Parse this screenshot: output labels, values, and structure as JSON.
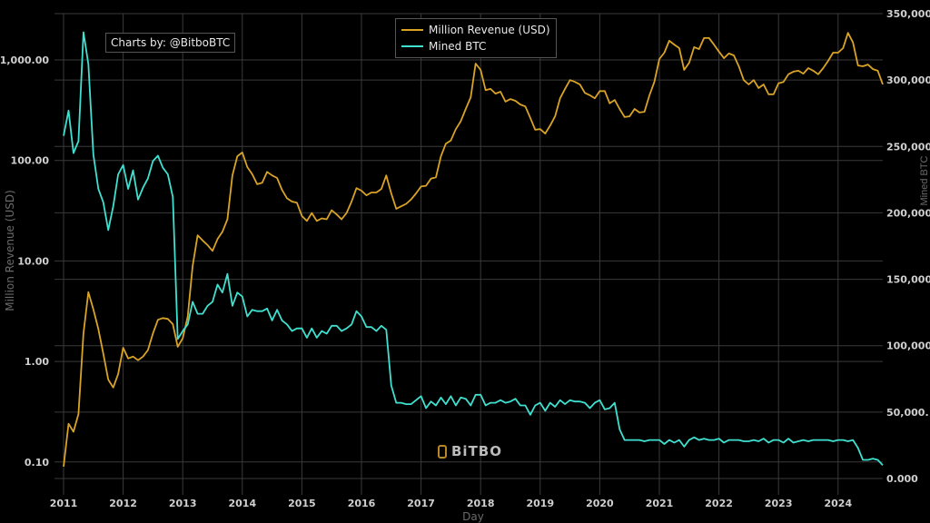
{
  "chart_data": {
    "type": "line",
    "xlabel": "Day",
    "ylabel": "Million Revenue (USD)",
    "y2label": "Mined BTC",
    "x_ticks": [
      "2011",
      "2012",
      "2013",
      "2014",
      "2015",
      "2016",
      "2017",
      "2018",
      "2019",
      "2020",
      "2021",
      "2022",
      "2023",
      "2024"
    ],
    "y_ticks": [
      "0.10",
      "1.00",
      "10.00",
      "100.00",
      "1,000.00"
    ],
    "y2_ticks": [
      "0.000",
      "50,000.",
      "100,000",
      "150,000",
      "200,000",
      "250,000",
      "300,000",
      "350,000"
    ],
    "y_scale": "log",
    "ylim": [
      0.085,
      2400
    ],
    "y2lim": [
      0,
      350000
    ],
    "xlim": [
      "2011-01",
      "2024-10"
    ],
    "grid": true,
    "legend_position": "top-center",
    "start_month": "2011-01",
    "series": [
      {
        "name": "Million Revenue (USD)",
        "axis": "left",
        "color": "#d9a326",
        "values": [
          0.09,
          0.24,
          0.2,
          0.3,
          1.9,
          4.9,
          3.3,
          2.1,
          1.2,
          0.66,
          0.55,
          0.75,
          1.37,
          1.07,
          1.12,
          1.03,
          1.12,
          1.3,
          1.9,
          2.6,
          2.7,
          2.65,
          2.35,
          1.4,
          1.7,
          2.8,
          8.9,
          18,
          16,
          14.4,
          12.6,
          16.5,
          19.5,
          26,
          71,
          110,
          120,
          86,
          73,
          58,
          60,
          77,
          71,
          67,
          51,
          42,
          39,
          38,
          28,
          25,
          30,
          25,
          26.5,
          26,
          32,
          29,
          26,
          30,
          39,
          53,
          50,
          45,
          48,
          48,
          52,
          71,
          47,
          33,
          35,
          37,
          41,
          47,
          55,
          56,
          66,
          68,
          110,
          147,
          158,
          205,
          245,
          325,
          425,
          920,
          795,
          500,
          515,
          462,
          483,
          385,
          408,
          392,
          360,
          345,
          265,
          202,
          205,
          185,
          222,
          275,
          415,
          515,
          630,
          605,
          570,
          470,
          445,
          415,
          490,
          490,
          370,
          400,
          325,
          270,
          275,
          325,
          300,
          305,
          445,
          605,
          1020,
          1180,
          1550,
          1420,
          1310,
          795,
          935,
          1340,
          1280,
          1650,
          1650,
          1420,
          1210,
          1040,
          1160,
          1110,
          865,
          630,
          570,
          630,
          525,
          570,
          455,
          455,
          585,
          605,
          720,
          765,
          780,
          730,
          830,
          780,
          720,
          830,
          980,
          1180,
          1180,
          1310,
          1860,
          1490,
          880,
          865,
          900,
          810,
          780,
          570
        ]
      },
      {
        "name": "Mined BTC",
        "axis": "right",
        "color": "#3fe0d0",
        "values": [
          258000,
          277000,
          245000,
          254000,
          336000,
          312000,
          244000,
          218000,
          208000,
          187000,
          205000,
          229000,
          236000,
          218000,
          232000,
          210000,
          219000,
          226000,
          239000,
          243000,
          234000,
          229000,
          212000,
          105000,
          111000,
          116000,
          133000,
          124000,
          124000,
          130000,
          133000,
          146000,
          140000,
          154000,
          130000,
          140000,
          137000,
          122000,
          127000,
          126000,
          126000,
          128000,
          119000,
          127000,
          119000,
          116000,
          111000,
          113000,
          113000,
          106000,
          113000,
          106000,
          111000,
          109000,
          115000,
          115000,
          111000,
          113000,
          116000,
          126000,
          122000,
          114000,
          114000,
          111000,
          115000,
          112000,
          70000,
          57000,
          57000,
          56000,
          56000,
          59000,
          62000,
          53000,
          58000,
          55000,
          61000,
          56000,
          62000,
          55000,
          61000,
          60000,
          55000,
          63000,
          63000,
          55000,
          57000,
          57000,
          59000,
          57000,
          58000,
          60000,
          55000,
          55000,
          48000,
          55000,
          57000,
          51000,
          57000,
          54000,
          59000,
          56000,
          59000,
          58000,
          58000,
          57000,
          53000,
          57000,
          59000,
          52000,
          53000,
          57000,
          37000,
          29000,
          29000,
          29000,
          29000,
          28000,
          29000,
          29000,
          29000,
          26000,
          29000,
          27000,
          29000,
          24000,
          29000,
          31000,
          29000,
          30000,
          29000,
          29000,
          30000,
          27000,
          29000,
          29000,
          29000,
          28000,
          28000,
          29000,
          28000,
          30000,
          27000,
          29000,
          29000,
          27000,
          30000,
          27000,
          28000,
          29000,
          28000,
          29000,
          29000,
          29000,
          29000,
          28000,
          29000,
          29000,
          28000,
          29000,
          23000,
          14000,
          14000,
          15000,
          14000,
          10000
        ]
      }
    ]
  },
  "credit": "Charts by: @BitboBTC",
  "logo_text": "BiTBO"
}
